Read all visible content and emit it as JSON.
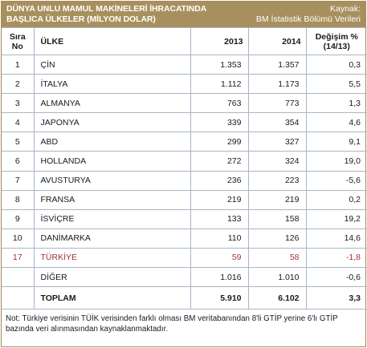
{
  "header": {
    "title": "DÜNYA UNLU MAMUL MAKİNELERİ İHRACATINDA\nBAŞLICA ÜLKELER (MİLYON DOLAR)",
    "source": "Kaynak:\nBM İstatistik Bölümü Verileri"
  },
  "columns": {
    "rank": "Sıra\nNo",
    "country": "ÜLKE",
    "y2013": "2013",
    "y2014": "2014",
    "change": "Değişim %\n(14/13)"
  },
  "rows": [
    {
      "rank": "1",
      "country": "ÇİN",
      "y2013": "1.353",
      "y2014": "1.357",
      "change": "0,3"
    },
    {
      "rank": "2",
      "country": "İTALYA",
      "y2013": "1.112",
      "y2014": "1.173",
      "change": "5,5"
    },
    {
      "rank": "3",
      "country": "ALMANYA",
      "y2013": "763",
      "y2014": "773",
      "change": "1,3"
    },
    {
      "rank": "4",
      "country": "JAPONYA",
      "y2013": "339",
      "y2014": "354",
      "change": "4,6"
    },
    {
      "rank": "5",
      "country": "ABD",
      "y2013": "299",
      "y2014": "327",
      "change": "9,1"
    },
    {
      "rank": "6",
      "country": "HOLLANDA",
      "y2013": "272",
      "y2014": "324",
      "change": "19,0"
    },
    {
      "rank": "7",
      "country": "AVUSTURYA",
      "y2013": "236",
      "y2014": "223",
      "change": "-5,6"
    },
    {
      "rank": "8",
      "country": "FRANSA",
      "y2013": "219",
      "y2014": "219",
      "change": "0,2"
    },
    {
      "rank": "9",
      "country": "İSVİÇRE",
      "y2013": "133",
      "y2014": "158",
      "change": "19,2"
    },
    {
      "rank": "10",
      "country": "DANİMARKA",
      "y2013": "110",
      "y2014": "126",
      "change": "14,6"
    },
    {
      "rank": "17",
      "country": "TÜRKİYE",
      "y2013": "59",
      "y2014": "58",
      "change": "-1,8",
      "highlight": true
    },
    {
      "rank": "",
      "country": "DİĞER",
      "y2013": "1.016",
      "y2014": "1.010",
      "change": "-0,6"
    }
  ],
  "total": {
    "rank": "",
    "country": "TOPLAM",
    "y2013": "5.910",
    "y2014": "6.102",
    "change": "3,3"
  },
  "note": "Not: Türkiye verisinin TÜİK verisinden farklı olması BM veritabanından 8'li GTİP yerine 6'lı GTİP bazında veri alınmasından kaynaklanmaktadır.",
  "colors": {
    "header_bg": "#a8905e",
    "highlight_text": "#a3333a",
    "grid": "#a9b6c8"
  }
}
